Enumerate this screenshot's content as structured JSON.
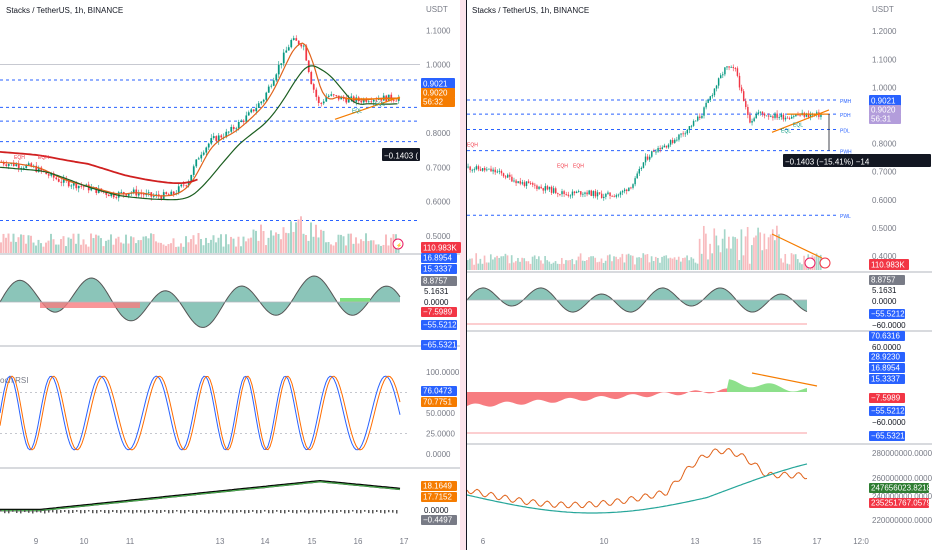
{
  "left": {
    "title": "Stacks / TetherUS, 1h, BINANCE",
    "axis_unit": "USDT",
    "price_ticks": [
      "1.1000",
      "1.0000",
      "0.9000",
      "0.8000",
      "0.7000",
      "0.6000",
      "0.5000"
    ],
    "price_badges": [
      "0.9021",
      "0.9020",
      "56:32"
    ],
    "measure_label": "−0.1403 (",
    "volume_badge": "110.983K",
    "osc1_values": [
      "16.8954",
      "15.3337",
      "8.8757",
      "5.1631",
      "0.0000",
      "−7.5989",
      "−55.5212",
      "−65.5321"
    ],
    "rsi_label": "och RSI",
    "rsi_ticks": [
      "100.0000",
      "75.0000",
      "50.0000",
      "25.0000",
      "0.0000"
    ],
    "rsi_values": [
      "76.0473",
      "70.7751"
    ],
    "osc3_values": [
      "18.1649",
      "17.7152",
      "0.0000",
      "−0.4497"
    ],
    "x_ticks": [
      "9",
      "10",
      "11",
      "13",
      "14",
      "15",
      "16",
      "17"
    ],
    "annotations": [
      "EQH",
      "EQH",
      "EQL",
      "EQL"
    ]
  },
  "right": {
    "title": "Stacks / TetherUS, 1h, BINANCE",
    "axis_unit": "USDT",
    "price_ticks": [
      "1.2000",
      "1.1000",
      "1.0000",
      "0.9000",
      "0.8000",
      "0.7000",
      "0.6000",
      "0.5000",
      "0.4000"
    ],
    "price_badges": [
      "0.9021",
      "0.9020",
      "56:31"
    ],
    "measure_label": "−0.1403 (−15.41%) −14",
    "volume_badge": "110.983K",
    "level_labels": [
      "PMH",
      "PDH",
      "PDL",
      "PWH",
      "PWL"
    ],
    "osc1_values": [
      "8.8757",
      "5.1631",
      "0.0000",
      "−55.5212",
      "−60.0000"
    ],
    "osc2_values": [
      "70.6316",
      "60.0000",
      "28.9230",
      "16.8954",
      "15.3337",
      "−7.5989",
      "−55.5212",
      "−60.0000",
      "−65.5321"
    ],
    "osc3_ticks": [
      "280000000.0000",
      "260000000.0000",
      "240000000.0000",
      "220000000.0000"
    ],
    "osc3_values": [
      "247656023.8218",
      "235251767.0579"
    ],
    "x_ticks": [
      "6",
      "10",
      "13",
      "15",
      "17",
      "12:0"
    ],
    "annotations": [
      "EQH",
      "EQH",
      "EQH",
      "EQL",
      "EQL"
    ]
  },
  "colors": {
    "blue_badge": "#2962ff",
    "orange_badge": "#f57c00",
    "grey_badge": "#787b86",
    "dark_badge": "#131722",
    "red_badge": "#f23645",
    "green_line": "#089981",
    "orange_line": "#e0631b",
    "red_ma": "#d02020",
    "teal_fill": "#8bc5b9",
    "salmon": "#f77c80"
  },
  "icons": [
    "lightning-icon",
    "flag-icon"
  ]
}
